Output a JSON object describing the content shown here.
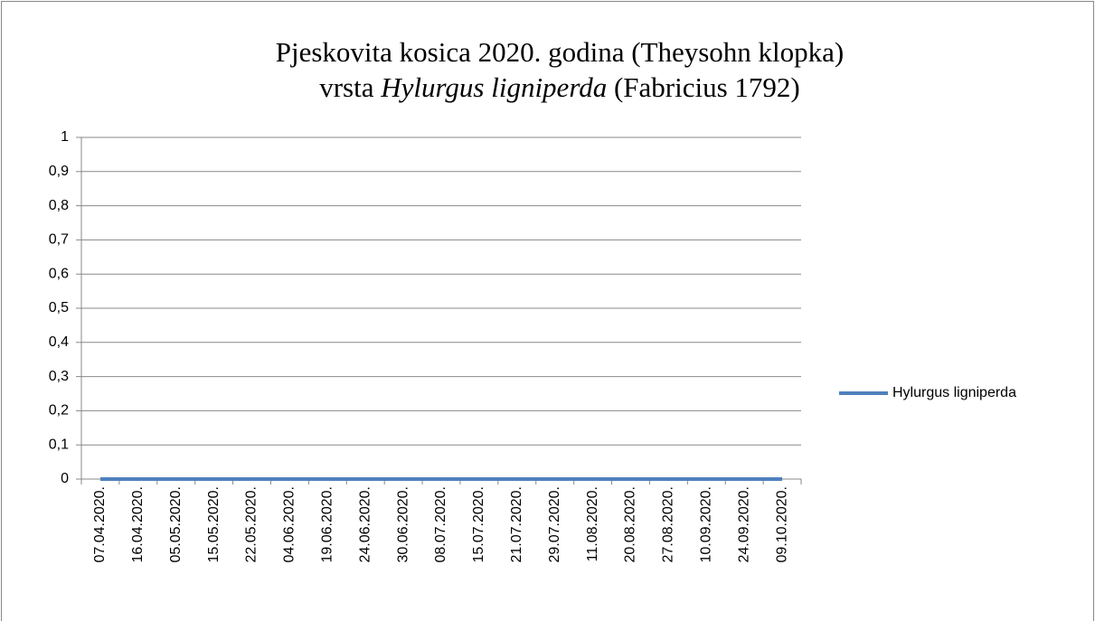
{
  "chart_data": {
    "type": "line",
    "title": "Pjeskovita kosica 2020. godina (Theysohn klopka)",
    "subtitle": [
      "vrsta",
      "Hylurgus ligniperda",
      "(Fabricius 1792)"
    ],
    "categories": [
      "07.04.2020.",
      "16.04.2020.",
      "05.05.2020.",
      "15.05.2020.",
      "22.05.2020.",
      "04.06.2020.",
      "19.06.2020.",
      "24.06.2020.",
      "30.06.2020.",
      "08.07.2020.",
      "15.07.2020.",
      "21.07.2020.",
      "29.07.2020.",
      "11.08.2020.",
      "20.08.2020.",
      "27.08.2020.",
      "10.09.2020.",
      "24.09.2020.",
      "09.10.2020."
    ],
    "series": [
      {
        "name": "Hylurgus ligniperda",
        "color": "#4f81bd",
        "values": [
          0,
          0,
          0,
          0,
          0,
          0,
          0,
          0,
          0,
          0,
          0,
          0,
          0,
          0,
          0,
          0,
          0,
          0,
          0
        ]
      }
    ],
    "ylim": [
      0,
      1
    ],
    "yticks": [
      0,
      {
        "value": 0.1,
        "label": "0,1"
      },
      {
        "value": 0.2,
        "label": "0,2"
      },
      {
        "value": 0.3,
        "label": "0,3"
      },
      {
        "value": 0.4,
        "label": "0,4"
      },
      {
        "value": 0.5,
        "label": "0,5"
      },
      {
        "value": 0.6,
        "label": "0,6"
      },
      {
        "value": 0.7,
        "label": "0,7"
      },
      {
        "value": 0.8,
        "label": "0,8"
      },
      {
        "value": 0.9,
        "label": "0,9"
      },
      1
    ],
    "grid": true,
    "legend": "right"
  }
}
